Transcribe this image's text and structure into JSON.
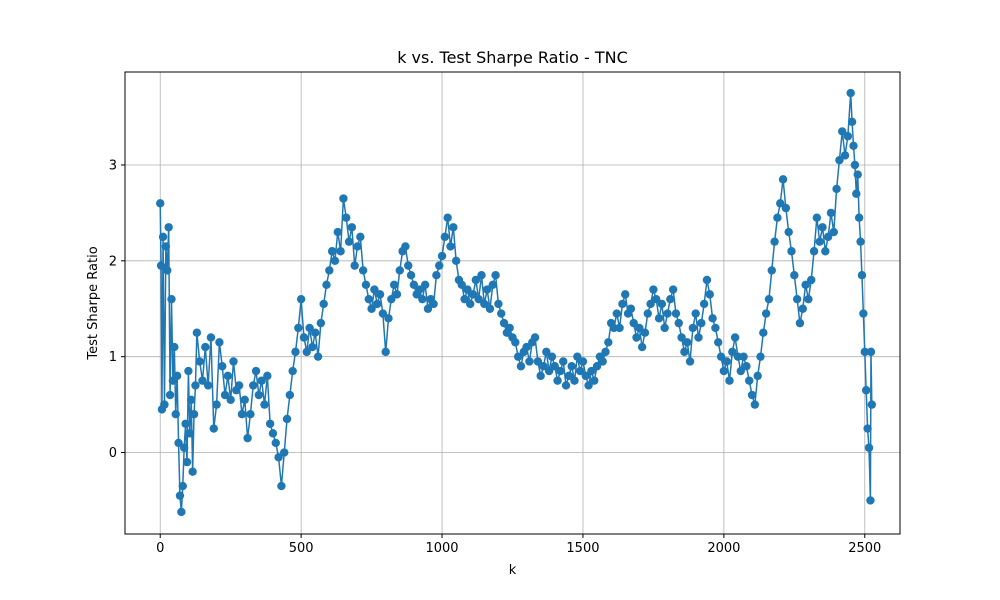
{
  "chart_data": {
    "type": "line",
    "title": "k vs. Test Sharpe Ratio - TNC",
    "xlabel": "k",
    "ylabel": "Test Sharpe Ratio",
    "xlim": [
      -125,
      2625
    ],
    "ylim": [
      -0.85,
      3.97
    ],
    "xticks": [
      0,
      500,
      1000,
      1500,
      2000,
      2500
    ],
    "yticks": [
      0,
      1,
      2,
      3
    ],
    "grid": true,
    "marker": "circle",
    "color": "#1f77b4",
    "series": [
      {
        "points": [
          [
            0,
            2.6
          ],
          [
            3,
            1.95
          ],
          [
            6,
            0.45
          ],
          [
            10,
            2.25
          ],
          [
            15,
            0.5
          ],
          [
            20,
            2.15
          ],
          [
            25,
            1.9
          ],
          [
            30,
            2.35
          ],
          [
            35,
            0.6
          ],
          [
            40,
            1.6
          ],
          [
            45,
            0.75
          ],
          [
            50,
            1.1
          ],
          [
            55,
            0.4
          ],
          [
            60,
            0.8
          ],
          [
            65,
            0.1
          ],
          [
            70,
            -0.45
          ],
          [
            75,
            -0.62
          ],
          [
            80,
            -0.35
          ],
          [
            85,
            0.05
          ],
          [
            90,
            0.3
          ],
          [
            95,
            -0.1
          ],
          [
            100,
            0.85
          ],
          [
            105,
            0.2
          ],
          [
            110,
            0.55
          ],
          [
            115,
            -0.2
          ],
          [
            120,
            0.4
          ],
          [
            125,
            0.7
          ],
          [
            130,
            1.25
          ],
          [
            140,
            0.95
          ],
          [
            150,
            0.75
          ],
          [
            160,
            1.1
          ],
          [
            170,
            0.7
          ],
          [
            180,
            1.2
          ],
          [
            190,
            0.25
          ],
          [
            200,
            0.5
          ],
          [
            210,
            1.15
          ],
          [
            220,
            0.9
          ],
          [
            230,
            0.6
          ],
          [
            240,
            0.8
          ],
          [
            250,
            0.55
          ],
          [
            260,
            0.95
          ],
          [
            270,
            0.65
          ],
          [
            280,
            0.7
          ],
          [
            290,
            0.4
          ],
          [
            300,
            0.55
          ],
          [
            310,
            0.15
          ],
          [
            320,
            0.4
          ],
          [
            330,
            0.7
          ],
          [
            340,
            0.85
          ],
          [
            350,
            0.6
          ],
          [
            360,
            0.75
          ],
          [
            370,
            0.5
          ],
          [
            380,
            0.8
          ],
          [
            390,
            0.3
          ],
          [
            400,
            0.2
          ],
          [
            410,
            0.1
          ],
          [
            420,
            -0.05
          ],
          [
            430,
            -0.35
          ],
          [
            440,
            0.0
          ],
          [
            450,
            0.35
          ],
          [
            460,
            0.6
          ],
          [
            470,
            0.85
          ],
          [
            480,
            1.05
          ],
          [
            490,
            1.3
          ],
          [
            500,
            1.6
          ],
          [
            510,
            1.2
          ],
          [
            520,
            1.05
          ],
          [
            530,
            1.3
          ],
          [
            540,
            1.1
          ],
          [
            550,
            1.25
          ],
          [
            560,
            1.0
          ],
          [
            570,
            1.35
          ],
          [
            580,
            1.55
          ],
          [
            590,
            1.75
          ],
          [
            600,
            1.9
          ],
          [
            610,
            2.1
          ],
          [
            620,
            2.0
          ],
          [
            630,
            2.3
          ],
          [
            640,
            2.1
          ],
          [
            650,
            2.65
          ],
          [
            660,
            2.45
          ],
          [
            670,
            2.2
          ],
          [
            680,
            2.35
          ],
          [
            690,
            1.95
          ],
          [
            700,
            2.15
          ],
          [
            710,
            2.25
          ],
          [
            720,
            1.9
          ],
          [
            730,
            1.75
          ],
          [
            740,
            1.6
          ],
          [
            750,
            1.5
          ],
          [
            760,
            1.7
          ],
          [
            770,
            1.55
          ],
          [
            780,
            1.65
          ],
          [
            790,
            1.45
          ],
          [
            800,
            1.05
          ],
          [
            810,
            1.4
          ],
          [
            820,
            1.6
          ],
          [
            830,
            1.75
          ],
          [
            840,
            1.65
          ],
          [
            850,
            1.9
          ],
          [
            860,
            2.1
          ],
          [
            870,
            2.15
          ],
          [
            880,
            1.95
          ],
          [
            890,
            1.85
          ],
          [
            900,
            1.75
          ],
          [
            910,
            1.65
          ],
          [
            920,
            1.7
          ],
          [
            930,
            1.6
          ],
          [
            940,
            1.75
          ],
          [
            950,
            1.5
          ],
          [
            960,
            1.6
          ],
          [
            970,
            1.55
          ],
          [
            980,
            1.85
          ],
          [
            990,
            1.95
          ],
          [
            1000,
            2.05
          ],
          [
            1010,
            2.25
          ],
          [
            1020,
            2.45
          ],
          [
            1030,
            2.15
          ],
          [
            1040,
            2.35
          ],
          [
            1050,
            2.0
          ],
          [
            1060,
            1.8
          ],
          [
            1070,
            1.75
          ],
          [
            1080,
            1.6
          ],
          [
            1090,
            1.7
          ],
          [
            1100,
            1.55
          ],
          [
            1110,
            1.65
          ],
          [
            1120,
            1.8
          ],
          [
            1130,
            1.6
          ],
          [
            1140,
            1.85
          ],
          [
            1150,
            1.55
          ],
          [
            1160,
            1.7
          ],
          [
            1170,
            1.5
          ],
          [
            1180,
            1.75
          ],
          [
            1190,
            1.85
          ],
          [
            1200,
            1.55
          ],
          [
            1210,
            1.45
          ],
          [
            1220,
            1.35
          ],
          [
            1230,
            1.25
          ],
          [
            1240,
            1.3
          ],
          [
            1250,
            1.2
          ],
          [
            1260,
            1.15
          ],
          [
            1270,
            1.0
          ],
          [
            1280,
            0.9
          ],
          [
            1290,
            1.05
          ],
          [
            1300,
            1.1
          ],
          [
            1310,
            0.95
          ],
          [
            1320,
            1.15
          ],
          [
            1330,
            1.2
          ],
          [
            1340,
            0.95
          ],
          [
            1350,
            0.8
          ],
          [
            1360,
            0.9
          ],
          [
            1370,
            1.05
          ],
          [
            1380,
            0.85
          ],
          [
            1390,
            1.0
          ],
          [
            1400,
            0.9
          ],
          [
            1410,
            0.75
          ],
          [
            1420,
            0.85
          ],
          [
            1430,
            0.95
          ],
          [
            1440,
            0.7
          ],
          [
            1450,
            0.8
          ],
          [
            1460,
            0.9
          ],
          [
            1470,
            0.75
          ],
          [
            1480,
            1.0
          ],
          [
            1490,
            0.85
          ],
          [
            1500,
            0.95
          ],
          [
            1510,
            0.8
          ],
          [
            1520,
            0.7
          ],
          [
            1530,
            0.85
          ],
          [
            1540,
            0.75
          ],
          [
            1550,
            0.9
          ],
          [
            1560,
            1.0
          ],
          [
            1570,
            0.95
          ],
          [
            1580,
            1.05
          ],
          [
            1590,
            1.15
          ],
          [
            1600,
            1.35
          ],
          [
            1610,
            1.3
          ],
          [
            1620,
            1.45
          ],
          [
            1630,
            1.3
          ],
          [
            1640,
            1.55
          ],
          [
            1650,
            1.65
          ],
          [
            1660,
            1.45
          ],
          [
            1670,
            1.5
          ],
          [
            1680,
            1.35
          ],
          [
            1690,
            1.2
          ],
          [
            1700,
            1.3
          ],
          [
            1710,
            1.1
          ],
          [
            1720,
            1.25
          ],
          [
            1730,
            1.45
          ],
          [
            1740,
            1.55
          ],
          [
            1750,
            1.7
          ],
          [
            1760,
            1.6
          ],
          [
            1770,
            1.4
          ],
          [
            1780,
            1.55
          ],
          [
            1790,
            1.3
          ],
          [
            1800,
            1.45
          ],
          [
            1810,
            1.6
          ],
          [
            1820,
            1.7
          ],
          [
            1830,
            1.45
          ],
          [
            1840,
            1.35
          ],
          [
            1850,
            1.2
          ],
          [
            1860,
            1.05
          ],
          [
            1870,
            1.15
          ],
          [
            1880,
            0.95
          ],
          [
            1890,
            1.3
          ],
          [
            1900,
            1.45
          ],
          [
            1910,
            1.2
          ],
          [
            1920,
            1.35
          ],
          [
            1930,
            1.55
          ],
          [
            1940,
            1.8
          ],
          [
            1950,
            1.65
          ],
          [
            1960,
            1.4
          ],
          [
            1970,
            1.3
          ],
          [
            1980,
            1.15
          ],
          [
            1990,
            1.0
          ],
          [
            2000,
            0.85
          ],
          [
            2010,
            0.95
          ],
          [
            2020,
            0.75
          ],
          [
            2030,
            1.05
          ],
          [
            2040,
            1.2
          ],
          [
            2050,
            1.0
          ],
          [
            2060,
            0.85
          ],
          [
            2070,
            1.0
          ],
          [
            2080,
            0.9
          ],
          [
            2090,
            0.75
          ],
          [
            2100,
            0.6
          ],
          [
            2110,
            0.5
          ],
          [
            2120,
            0.8
          ],
          [
            2130,
            1.0
          ],
          [
            2140,
            1.25
          ],
          [
            2150,
            1.45
          ],
          [
            2160,
            1.6
          ],
          [
            2170,
            1.9
          ],
          [
            2180,
            2.2
          ],
          [
            2190,
            2.45
          ],
          [
            2200,
            2.6
          ],
          [
            2210,
            2.85
          ],
          [
            2220,
            2.55
          ],
          [
            2230,
            2.3
          ],
          [
            2240,
            2.1
          ],
          [
            2250,
            1.85
          ],
          [
            2260,
            1.6
          ],
          [
            2270,
            1.35
          ],
          [
            2280,
            1.5
          ],
          [
            2290,
            1.75
          ],
          [
            2300,
            1.6
          ],
          [
            2310,
            1.8
          ],
          [
            2320,
            2.1
          ],
          [
            2330,
            2.45
          ],
          [
            2340,
            2.2
          ],
          [
            2350,
            2.35
          ],
          [
            2360,
            2.1
          ],
          [
            2370,
            2.25
          ],
          [
            2380,
            2.5
          ],
          [
            2390,
            2.3
          ],
          [
            2400,
            2.75
          ],
          [
            2410,
            3.05
          ],
          [
            2420,
            3.35
          ],
          [
            2430,
            3.1
          ],
          [
            2440,
            3.3
          ],
          [
            2450,
            3.75
          ],
          [
            2455,
            3.45
          ],
          [
            2460,
            3.2
          ],
          [
            2465,
            3.0
          ],
          [
            2470,
            2.7
          ],
          [
            2475,
            2.9
          ],
          [
            2480,
            2.45
          ],
          [
            2485,
            2.2
          ],
          [
            2490,
            1.85
          ],
          [
            2495,
            1.45
          ],
          [
            2500,
            1.05
          ],
          [
            2505,
            0.65
          ],
          [
            2510,
            0.25
          ],
          [
            2515,
            0.05
          ],
          [
            2520,
            -0.5
          ],
          [
            2522,
            1.05
          ],
          [
            2525,
            0.5
          ]
        ]
      }
    ]
  }
}
